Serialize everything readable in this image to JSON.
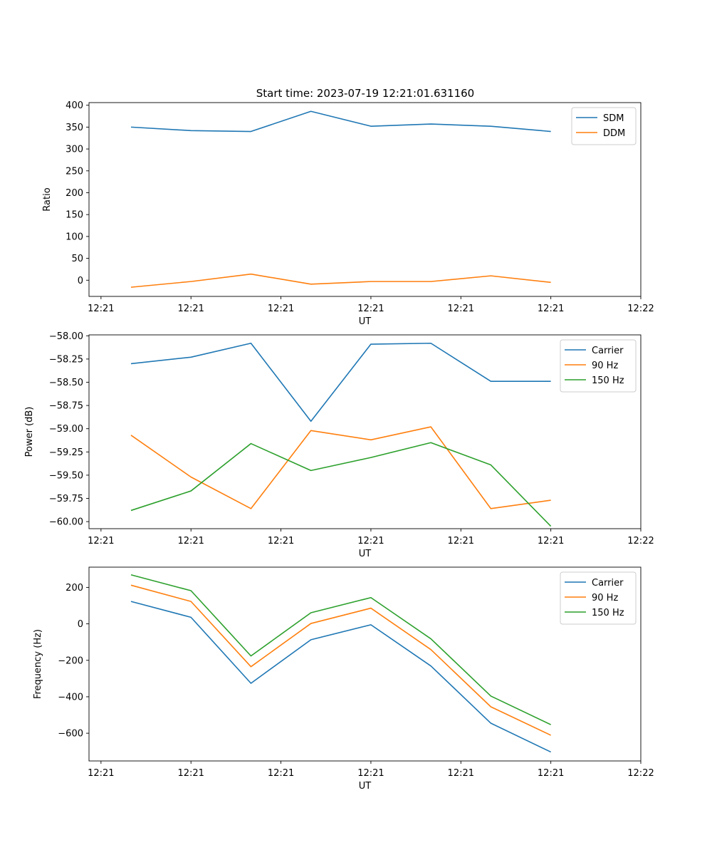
{
  "figure_title": "Start time: 2023-07-19 12:21:01.631160",
  "chart_data": [
    {
      "type": "line",
      "title": "Start time: 2023-07-19 12:21:01.631160",
      "xlabel": "UT",
      "ylabel": "Ratio",
      "x_tick_labels": [
        "12:21",
        "12:21",
        "12:21",
        "12:21",
        "12:21",
        "12:21",
        "12:22"
      ],
      "x_tick_positions": [
        -0.5,
        1,
        2.5,
        4,
        5.5,
        7,
        8.5
      ],
      "xlim": [
        -0.7,
        8.5
      ],
      "ylim": [
        -37,
        406
      ],
      "y_ticks": [
        0,
        50,
        100,
        150,
        200,
        250,
        300,
        350,
        400
      ],
      "y_tick_labels": [
        "0",
        "50",
        "100",
        "150",
        "200",
        "250",
        "300",
        "350",
        "400"
      ],
      "x": [
        0,
        1,
        2,
        3,
        4,
        5,
        6,
        7
      ],
      "legend_position": "top-right",
      "series": [
        {
          "name": "SDM",
          "color": "#1f77b4",
          "values": [
            350,
            342,
            340,
            386,
            352,
            357,
            352,
            340
          ]
        },
        {
          "name": "DDM",
          "color": "#ff7f0e",
          "values": [
            -16,
            -3,
            14,
            -9,
            -3,
            -3,
            10,
            -5
          ]
        }
      ]
    },
    {
      "type": "line",
      "title": "",
      "xlabel": "UT",
      "ylabel": "Power (dB)",
      "x_tick_labels": [
        "12:21",
        "12:21",
        "12:21",
        "12:21",
        "12:21",
        "12:21",
        "12:22"
      ],
      "x_tick_positions": [
        -0.5,
        1,
        2.5,
        4,
        5.5,
        7,
        8.5
      ],
      "xlim": [
        -0.7,
        8.5
      ],
      "ylim": [
        -60.076,
        -57.99
      ],
      "y_ticks": [
        -60.0,
        -59.75,
        -59.5,
        -59.25,
        -59.0,
        -58.75,
        -58.5,
        -58.25,
        -58.0
      ],
      "y_tick_labels": [
        "−60.00",
        "−59.75",
        "−59.50",
        "−59.25",
        "−59.00",
        "−58.75",
        "−58.50",
        "−58.25",
        "−58.00"
      ],
      "x": [
        0,
        1,
        2,
        3,
        4,
        5,
        6,
        7
      ],
      "legend_position": "top-right",
      "series": [
        {
          "name": "Carrier",
          "color": "#1f77b4",
          "values": [
            -58.3,
            -58.23,
            -58.08,
            -58.92,
            -58.09,
            -58.08,
            -58.49,
            -58.49
          ]
        },
        {
          "name": "90 Hz",
          "color": "#ff7f0e",
          "values": [
            -59.07,
            -59.52,
            -59.86,
            -59.02,
            -59.12,
            -58.98,
            -59.86,
            -59.77
          ]
        },
        {
          "name": "150 Hz",
          "color": "#2ca02c",
          "values": [
            -59.88,
            -59.67,
            -59.16,
            -59.45,
            -59.31,
            -59.15,
            -59.39,
            -60.05
          ]
        }
      ]
    },
    {
      "type": "line",
      "title": "",
      "xlabel": "UT",
      "ylabel": "Frequency (Hz)",
      "x_tick_labels": [
        "12:21",
        "12:21",
        "12:21",
        "12:21",
        "12:21",
        "12:21",
        "12:22"
      ],
      "x_tick_positions": [
        -0.5,
        1,
        2.5,
        4,
        5.5,
        7,
        8.5
      ],
      "xlim": [
        -0.7,
        8.5
      ],
      "ylim": [
        -752,
        311
      ],
      "y_ticks": [
        -600,
        -400,
        -200,
        0,
        200
      ],
      "y_tick_labels": [
        "−600",
        "−400",
        "−200",
        "0",
        "200"
      ],
      "x": [
        0,
        1,
        2,
        3,
        4,
        5,
        6,
        7
      ],
      "legend_position": "top-right",
      "series": [
        {
          "name": "Carrier",
          "color": "#1f77b4",
          "values": [
            123,
            36,
            -326,
            -87,
            -5,
            -231,
            -545,
            -703
          ]
        },
        {
          "name": "90 Hz",
          "color": "#ff7f0e",
          "values": [
            212,
            123,
            -235,
            2,
            86,
            -141,
            -455,
            -611
          ]
        },
        {
          "name": "150 Hz",
          "color": "#2ca02c",
          "values": [
            269,
            182,
            -176,
            61,
            144,
            -82,
            -396,
            -553
          ]
        }
      ]
    }
  ]
}
